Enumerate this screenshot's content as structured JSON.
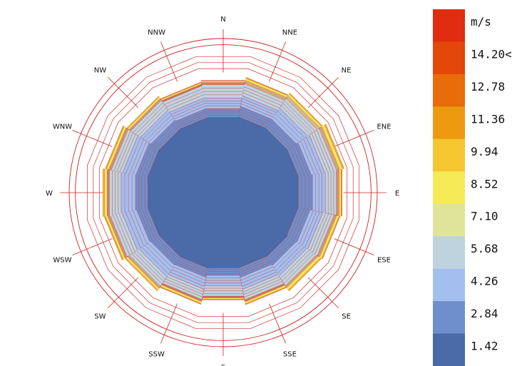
{
  "chart_data": {
    "type": "wind-rose",
    "title": "",
    "directions": [
      "N",
      "NNE",
      "NE",
      "ENE",
      "E",
      "ESE",
      "SE",
      "SSE",
      "S",
      "SSW",
      "SW",
      "WSW",
      "W",
      "WNW",
      "NW",
      "NNW"
    ],
    "speed_bins": {
      "unit_label": "m/s",
      "labels": [
        "1.42",
        "2.84",
        "4.26",
        "5.68",
        "7.10",
        "8.52",
        "9.94",
        "11.36",
        "12.78",
        "14.20<"
      ],
      "colors": [
        "#4a6aa8",
        "#6e8fcc",
        "#a3bff0",
        "#bfd3df",
        "#dfe49a",
        "#f6ea56",
        "#f6c530",
        "#ee9a10",
        "#e86c0a",
        "#e4470a",
        "#e02c10"
      ]
    },
    "bin_outer_radius": {
      "N": [
        0.497,
        0.555,
        0.625,
        0.714,
        0.729,
        0.738,
        0.742
      ],
      "NNE": [
        0.502,
        0.571,
        0.641,
        0.72,
        0.742,
        0.757,
        0.762
      ],
      "NE": [
        0.5,
        0.57,
        0.66,
        0.735,
        0.757,
        0.771,
        0.777
      ],
      "ENE": [
        0.5,
        0.583,
        0.672,
        0.75,
        0.771,
        0.792,
        0.8
      ],
      "E": [
        0.497,
        0.59,
        0.676,
        0.75,
        0.766,
        0.781,
        0.787
      ],
      "ESE": [
        0.497,
        0.575,
        0.66,
        0.735,
        0.752,
        0.769,
        0.775
      ],
      "SE": [
        0.503,
        0.57,
        0.652,
        0.728,
        0.742,
        0.76,
        0.768
      ],
      "SSE": [
        0.499,
        0.561,
        0.64,
        0.71,
        0.722,
        0.736,
        0.741
      ],
      "S": [
        0.497,
        0.547,
        0.615,
        0.685,
        0.695,
        0.705,
        0.709
      ],
      "SSW": [
        0.501,
        0.561,
        0.64,
        0.708,
        0.72,
        0.734,
        0.739
      ],
      "SW": [
        0.5,
        0.567,
        0.658,
        0.733,
        0.748,
        0.762,
        0.768
      ],
      "WSW": [
        0.5,
        0.573,
        0.67,
        0.75,
        0.766,
        0.781,
        0.788
      ],
      "W": [
        0.498,
        0.58,
        0.675,
        0.753,
        0.768,
        0.787,
        0.795
      ],
      "WNW": [
        0.501,
        0.578,
        0.666,
        0.742,
        0.758,
        0.774,
        0.781
      ],
      "NW": [
        0.499,
        0.565,
        0.646,
        0.722,
        0.735,
        0.748,
        0.753
      ],
      "NNW": [
        0.498,
        0.557,
        0.628,
        0.707,
        0.718,
        0.728,
        0.732
      ]
    },
    "grid": true,
    "legend_position": "right"
  }
}
